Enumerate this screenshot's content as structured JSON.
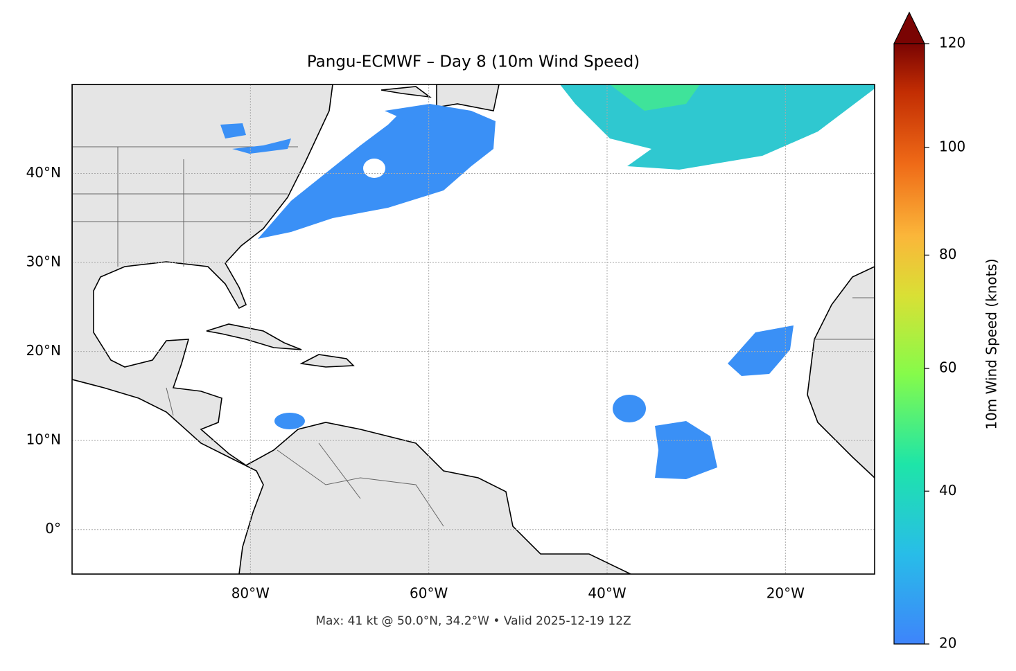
{
  "chart_data": {
    "type": "map",
    "title": "Pangu-ECMWF – Day 8 (10m Wind Speed)",
    "xlim": [
      -100,
      -10
    ],
    "ylim": [
      -5,
      50
    ],
    "xticks": [
      {
        "value": -80,
        "label": "80°W"
      },
      {
        "value": -60,
        "label": "60°W"
      },
      {
        "value": -40,
        "label": "40°W"
      },
      {
        "value": -20,
        "label": "20°W"
      }
    ],
    "yticks": [
      {
        "value": 0,
        "label": "0°"
      },
      {
        "value": 10,
        "label": "10°N"
      },
      {
        "value": 20,
        "label": "20°N"
      },
      {
        "value": 30,
        "label": "30°N"
      },
      {
        "value": 40,
        "label": "40°N"
      }
    ],
    "grid": true,
    "colorbar": {
      "label": "10m Wind Speed (knots)",
      "lim": [
        20,
        120
      ],
      "ticks": [
        20,
        40,
        60,
        80,
        100,
        120
      ],
      "norm": "power",
      "gamma": 0.85
    },
    "footer": "Max: 41 kt @ 50.0°N, 34.2°W • Valid 2025-12-19 12Z"
  }
}
